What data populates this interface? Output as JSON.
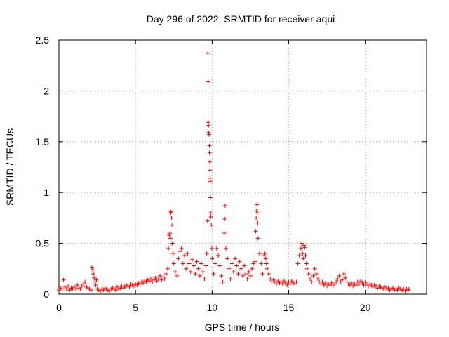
{
  "chart_data": {
    "type": "scatter",
    "title": "Day 296 of 2022, SRMTID for receiver aqui",
    "xlabel": "GPS time / hours",
    "ylabel": "SRMTID / TECUs",
    "xlim": [
      0,
      24
    ],
    "ylim": [
      0,
      2.5
    ],
    "x_ticks": [
      0,
      5,
      10,
      15,
      20
    ],
    "x_tick_labels": [
      "0",
      "5",
      "10",
      "15",
      "20"
    ],
    "y_ticks": [
      0,
      0.5,
      1,
      1.5,
      2,
      2.5
    ],
    "y_tick_labels": [
      "0",
      "0.5",
      "1",
      "1.5",
      "2",
      "2.5"
    ],
    "grid": true,
    "marker": "plus",
    "color": "#ff0000",
    "series": [
      {
        "name": "SRMTID",
        "points": [
          [
            0.0,
            0.04
          ],
          [
            0.1,
            0.06
          ],
          [
            0.2,
            0.05
          ],
          [
            0.3,
            0.14
          ],
          [
            0.4,
            0.07
          ],
          [
            0.5,
            0.05
          ],
          [
            0.6,
            0.08
          ],
          [
            0.7,
            0.04
          ],
          [
            0.8,
            0.06
          ],
          [
            0.9,
            0.05
          ],
          [
            1.0,
            0.07
          ],
          [
            1.1,
            0.05
          ],
          [
            1.2,
            0.09
          ],
          [
            1.3,
            0.06
          ],
          [
            1.4,
            0.05
          ],
          [
            1.5,
            0.08
          ],
          [
            1.6,
            0.1
          ],
          [
            1.7,
            0.12
          ],
          [
            1.8,
            0.07
          ],
          [
            1.9,
            0.06
          ],
          [
            2.0,
            0.05
          ],
          [
            2.1,
            0.04
          ],
          [
            2.15,
            0.26
          ],
          [
            2.2,
            0.24
          ],
          [
            2.25,
            0.2
          ],
          [
            2.3,
            0.16
          ],
          [
            2.35,
            0.12
          ],
          [
            2.4,
            0.09
          ],
          [
            2.45,
            0.14
          ],
          [
            2.5,
            0.05
          ],
          [
            2.6,
            0.04
          ],
          [
            2.7,
            0.03
          ],
          [
            2.8,
            0.05
          ],
          [
            2.9,
            0.04
          ],
          [
            3.0,
            0.06
          ],
          [
            3.1,
            0.05
          ],
          [
            3.2,
            0.04
          ],
          [
            3.3,
            0.03
          ],
          [
            3.4,
            0.05
          ],
          [
            3.5,
            0.06
          ],
          [
            3.6,
            0.05
          ],
          [
            3.7,
            0.04
          ],
          [
            3.8,
            0.07
          ],
          [
            3.9,
            0.05
          ],
          [
            4.0,
            0.06
          ],
          [
            4.1,
            0.08
          ],
          [
            4.2,
            0.06
          ],
          [
            4.3,
            0.07
          ],
          [
            4.4,
            0.09
          ],
          [
            4.5,
            0.08
          ],
          [
            4.6,
            0.07
          ],
          [
            4.7,
            0.1
          ],
          [
            4.8,
            0.09
          ],
          [
            4.9,
            0.08
          ],
          [
            5.0,
            0.1
          ],
          [
            5.1,
            0.09
          ],
          [
            5.2,
            0.11
          ],
          [
            5.3,
            0.1
          ],
          [
            5.4,
            0.12
          ],
          [
            5.5,
            0.11
          ],
          [
            5.6,
            0.13
          ],
          [
            5.7,
            0.12
          ],
          [
            5.8,
            0.14
          ],
          [
            5.9,
            0.13
          ],
          [
            6.0,
            0.15
          ],
          [
            6.1,
            0.12
          ],
          [
            6.2,
            0.14
          ],
          [
            6.3,
            0.16
          ],
          [
            6.4,
            0.13
          ],
          [
            6.5,
            0.15
          ],
          [
            6.6,
            0.18
          ],
          [
            6.7,
            0.14
          ],
          [
            6.8,
            0.17
          ],
          [
            6.9,
            0.15
          ],
          [
            7.0,
            0.2
          ],
          [
            7.1,
            0.25
          ],
          [
            7.15,
            0.45
          ],
          [
            7.2,
            0.58
          ],
          [
            7.25,
            0.6
          ],
          [
            7.28,
            0.55
          ],
          [
            7.3,
            0.8
          ],
          [
            7.32,
            0.81
          ],
          [
            7.35,
            0.75
          ],
          [
            7.38,
            0.68
          ],
          [
            7.4,
            0.5
          ],
          [
            7.45,
            0.4
          ],
          [
            7.5,
            0.3
          ],
          [
            7.6,
            0.22
          ],
          [
            7.7,
            0.18
          ],
          [
            7.8,
            0.35
          ],
          [
            7.9,
            0.42
          ],
          [
            8.0,
            0.45
          ],
          [
            8.1,
            0.3
          ],
          [
            8.2,
            0.38
          ],
          [
            8.3,
            0.25
          ],
          [
            8.4,
            0.4
          ],
          [
            8.5,
            0.3
          ],
          [
            8.6,
            0.22
          ],
          [
            8.7,
            0.34
          ],
          [
            8.8,
            0.28
          ],
          [
            8.9,
            0.2
          ],
          [
            9.0,
            0.32
          ],
          [
            9.1,
            0.25
          ],
          [
            9.2,
            0.18
          ],
          [
            9.3,
            0.3
          ],
          [
            9.4,
            0.22
          ],
          [
            9.5,
            0.15
          ],
          [
            9.6,
            0.28
          ],
          [
            9.65,
            0.4
          ],
          [
            9.7,
            0.72
          ],
          [
            9.72,
            2.37
          ],
          [
            9.74,
            2.09
          ],
          [
            9.75,
            1.69
          ],
          [
            9.77,
            1.66
          ],
          [
            9.78,
            1.59
          ],
          [
            9.8,
            1.57
          ],
          [
            9.82,
            1.46
          ],
          [
            9.83,
            1.39
          ],
          [
            9.85,
            1.3
          ],
          [
            9.86,
            1.22
          ],
          [
            9.87,
            1.14
          ],
          [
            9.88,
            1.11
          ],
          [
            9.89,
            0.95
          ],
          [
            9.9,
            0.8
          ],
          [
            9.92,
            0.76
          ],
          [
            9.95,
            0.68
          ],
          [
            9.98,
            0.45
          ],
          [
            10.0,
            0.35
          ],
          [
            10.1,
            0.2
          ],
          [
            10.2,
            0.3
          ],
          [
            10.3,
            0.45
          ],
          [
            10.4,
            0.38
          ],
          [
            10.5,
            0.28
          ],
          [
            10.6,
            0.18
          ],
          [
            10.7,
            0.12
          ],
          [
            10.8,
            0.6
          ],
          [
            10.82,
            0.74
          ],
          [
            10.85,
            0.87
          ],
          [
            10.9,
            0.45
          ],
          [
            11.0,
            0.35
          ],
          [
            11.1,
            0.25
          ],
          [
            11.2,
            0.15
          ],
          [
            11.3,
            0.3
          ],
          [
            11.4,
            0.22
          ],
          [
            11.5,
            0.35
          ],
          [
            11.6,
            0.28
          ],
          [
            11.7,
            0.2
          ],
          [
            11.8,
            0.32
          ],
          [
            11.9,
            0.25
          ],
          [
            12.0,
            0.18
          ],
          [
            12.1,
            0.28
          ],
          [
            12.2,
            0.2
          ],
          [
            12.3,
            0.15
          ],
          [
            12.4,
            0.22
          ],
          [
            12.5,
            0.18
          ],
          [
            12.6,
            0.25
          ],
          [
            12.7,
            0.3
          ],
          [
            12.8,
            0.32
          ],
          [
            12.85,
            0.62
          ],
          [
            12.88,
            0.75
          ],
          [
            12.9,
            0.82
          ],
          [
            12.92,
            0.88
          ],
          [
            12.95,
            0.8
          ],
          [
            12.98,
            0.7
          ],
          [
            13.0,
            0.55
          ],
          [
            13.1,
            0.4
          ],
          [
            13.2,
            0.3
          ],
          [
            13.3,
            0.2
          ],
          [
            13.4,
            0.38
          ],
          [
            13.45,
            0.4
          ],
          [
            13.5,
            0.35
          ],
          [
            13.55,
            0.3
          ],
          [
            13.6,
            0.25
          ],
          [
            13.7,
            0.2
          ],
          [
            13.8,
            0.15
          ],
          [
            13.9,
            0.12
          ],
          [
            14.0,
            0.14
          ],
          [
            14.1,
            0.12
          ],
          [
            14.2,
            0.1
          ],
          [
            14.3,
            0.13
          ],
          [
            14.4,
            0.11
          ],
          [
            14.5,
            0.12
          ],
          [
            14.6,
            0.1
          ],
          [
            14.7,
            0.13
          ],
          [
            14.8,
            0.11
          ],
          [
            14.9,
            0.09
          ],
          [
            15.0,
            0.12
          ],
          [
            15.1,
            0.1
          ],
          [
            15.2,
            0.13
          ],
          [
            15.3,
            0.11
          ],
          [
            15.4,
            0.1
          ],
          [
            15.5,
            0.12
          ],
          [
            15.6,
            0.3
          ],
          [
            15.7,
            0.38
          ],
          [
            15.8,
            0.45
          ],
          [
            15.85,
            0.5
          ],
          [
            15.9,
            0.4
          ],
          [
            15.95,
            0.35
          ],
          [
            16.0,
            0.48
          ],
          [
            16.05,
            0.46
          ],
          [
            16.1,
            0.38
          ],
          [
            16.15,
            0.3
          ],
          [
            16.2,
            0.25
          ],
          [
            16.3,
            0.2
          ],
          [
            16.4,
            0.15
          ],
          [
            16.5,
            0.12
          ],
          [
            16.6,
            0.18
          ],
          [
            16.7,
            0.25
          ],
          [
            16.8,
            0.2
          ],
          [
            16.9,
            0.15
          ],
          [
            17.0,
            0.12
          ],
          [
            17.1,
            0.1
          ],
          [
            17.2,
            0.12
          ],
          [
            17.3,
            0.09
          ],
          [
            17.4,
            0.11
          ],
          [
            17.5,
            0.08
          ],
          [
            17.6,
            0.1
          ],
          [
            17.7,
            0.09
          ],
          [
            17.8,
            0.11
          ],
          [
            17.9,
            0.08
          ],
          [
            18.0,
            0.1
          ],
          [
            18.1,
            0.12
          ],
          [
            18.2,
            0.15
          ],
          [
            18.3,
            0.18
          ],
          [
            18.4,
            0.12
          ],
          [
            18.5,
            0.14
          ],
          [
            18.6,
            0.2
          ],
          [
            18.7,
            0.16
          ],
          [
            18.8,
            0.12
          ],
          [
            18.9,
            0.1
          ],
          [
            19.0,
            0.09
          ],
          [
            19.1,
            0.11
          ],
          [
            19.2,
            0.08
          ],
          [
            19.3,
            0.1
          ],
          [
            19.4,
            0.09
          ],
          [
            19.5,
            0.12
          ],
          [
            19.6,
            0.1
          ],
          [
            19.7,
            0.13
          ],
          [
            19.8,
            0.11
          ],
          [
            19.9,
            0.09
          ],
          [
            20.0,
            0.12
          ],
          [
            20.1,
            0.1
          ],
          [
            20.2,
            0.08
          ],
          [
            20.3,
            0.1
          ],
          [
            20.4,
            0.09
          ],
          [
            20.5,
            0.07
          ],
          [
            20.6,
            0.09
          ],
          [
            20.7,
            0.08
          ],
          [
            20.8,
            0.06
          ],
          [
            20.9,
            0.08
          ],
          [
            21.0,
            0.07
          ],
          [
            21.1,
            0.06
          ],
          [
            21.2,
            0.05
          ],
          [
            21.3,
            0.07
          ],
          [
            21.4,
            0.05
          ],
          [
            21.5,
            0.06
          ],
          [
            21.6,
            0.04
          ],
          [
            21.7,
            0.05
          ],
          [
            21.8,
            0.06
          ],
          [
            21.9,
            0.04
          ],
          [
            22.0,
            0.05
          ],
          [
            22.1,
            0.04
          ],
          [
            22.2,
            0.06
          ],
          [
            22.3,
            0.05
          ],
          [
            22.4,
            0.04
          ],
          [
            22.5,
            0.05
          ],
          [
            22.6,
            0.03
          ],
          [
            22.7,
            0.05
          ],
          [
            22.8,
            0.04
          ],
          [
            22.85,
            0.05
          ]
        ]
      }
    ]
  }
}
